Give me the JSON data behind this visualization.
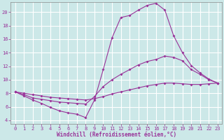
{
  "xlabel": "Windchill (Refroidissement éolien,°C)",
  "bg_color": "#cce8e8",
  "grid_color": "#ffffff",
  "line_color": "#993399",
  "x_ticks": [
    0,
    1,
    2,
    3,
    4,
    5,
    6,
    7,
    8,
    9,
    10,
    11,
    12,
    13,
    14,
    15,
    16,
    17,
    18,
    19,
    20,
    21,
    22,
    23
  ],
  "y_ticks": [
    4,
    6,
    8,
    10,
    12,
    14,
    16,
    18,
    20
  ],
  "ylim": [
    3.5,
    21.5
  ],
  "xlim": [
    -0.5,
    23.5
  ],
  "line1_x": [
    0,
    1,
    2,
    3,
    4,
    5,
    6,
    7,
    8,
    9,
    10,
    11,
    12,
    13,
    14,
    15,
    16,
    17,
    18,
    19,
    20,
    21,
    22,
    23
  ],
  "line1_y": [
    8.2,
    7.6,
    7.0,
    6.5,
    5.9,
    5.4,
    5.1,
    4.9,
    4.4,
    7.0,
    11.5,
    16.2,
    19.2,
    19.5,
    20.3,
    21.0,
    21.3,
    20.3,
    16.5,
    14.0,
    12.1,
    11.0,
    10.1,
    9.5
  ],
  "line2_x": [
    0,
    1,
    2,
    3,
    4,
    5,
    6,
    7,
    8,
    9,
    10,
    11,
    12,
    13,
    14,
    15,
    16,
    17,
    18,
    19,
    20,
    21,
    22,
    23
  ],
  "line2_y": [
    8.2,
    7.8,
    7.3,
    7.1,
    6.9,
    6.7,
    6.6,
    6.5,
    6.4,
    7.5,
    9.0,
    10.0,
    10.8,
    11.5,
    12.2,
    12.7,
    13.0,
    13.5,
    13.3,
    12.8,
    11.5,
    10.8,
    10.0,
    9.5
  ],
  "line3_x": [
    0,
    1,
    2,
    3,
    4,
    5,
    6,
    7,
    8,
    9,
    10,
    11,
    12,
    13,
    14,
    15,
    16,
    17,
    18,
    19,
    20,
    21,
    22,
    23
  ],
  "line3_y": [
    8.2,
    8.0,
    7.8,
    7.6,
    7.4,
    7.3,
    7.2,
    7.1,
    7.0,
    7.2,
    7.5,
    7.9,
    8.2,
    8.5,
    8.8,
    9.1,
    9.3,
    9.5,
    9.5,
    9.4,
    9.3,
    9.3,
    9.4,
    9.5
  ]
}
